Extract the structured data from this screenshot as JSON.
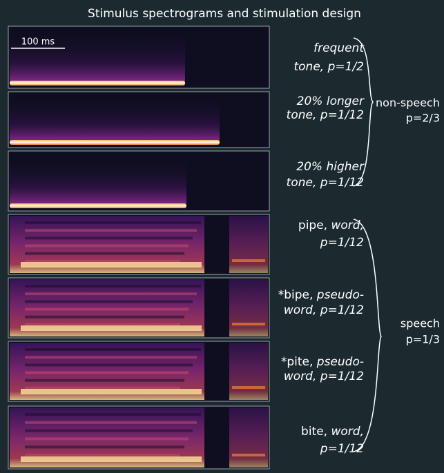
{
  "title": "Stimulus spectrograms and stimulation design",
  "scale_bar": "100 ms",
  "panels": [
    {
      "kind": "tone",
      "lines": [
        [
          {
            "text": "frequent",
            "italic": true
          }
        ],
        [
          {
            "text": "tone, p=1/2",
            "italic": true
          }
        ]
      ]
    },
    {
      "kind": "tone",
      "lines": [
        [
          {
            "text": "20% longer",
            "italic": true
          }
        ],
        [
          {
            "text": "tone, p=1/12",
            "italic": true
          }
        ]
      ]
    },
    {
      "kind": "tone",
      "lines": [
        [
          {
            "text": "20% higher",
            "italic": true
          }
        ],
        [
          {
            "text": "tone, p=1/12",
            "italic": true
          }
        ]
      ]
    },
    {
      "kind": "speech",
      "lines": [
        [
          {
            "text": "pipe, ",
            "italic": false
          },
          {
            "text": "word,",
            "italic": true
          }
        ],
        [
          {
            "text": "p=1/12",
            "italic": true
          }
        ]
      ]
    },
    {
      "kind": "speech",
      "lines": [
        [
          {
            "text": "*bipe, ",
            "italic": false
          },
          {
            "text": "pseudo-",
            "italic": true
          }
        ],
        [
          {
            "text": "word, p=1/12",
            "italic": true
          }
        ]
      ]
    },
    {
      "kind": "speech",
      "lines": [
        [
          {
            "text": "*pite, ",
            "italic": false
          },
          {
            "text": "pseudo-",
            "italic": true
          }
        ],
        [
          {
            "text": "word, p=1/12",
            "italic": true
          }
        ]
      ]
    },
    {
      "kind": "speech",
      "lines": [
        [
          {
            "text": "bite, ",
            "italic": false
          },
          {
            "text": "word,",
            "italic": true
          }
        ],
        [
          {
            "text": "p=1/12",
            "italic": true
          }
        ]
      ]
    }
  ],
  "groups": [
    {
      "name": "non-speech",
      "probability": "p=2/3"
    },
    {
      "name": "speech",
      "probability": "p=1/3"
    }
  ]
}
